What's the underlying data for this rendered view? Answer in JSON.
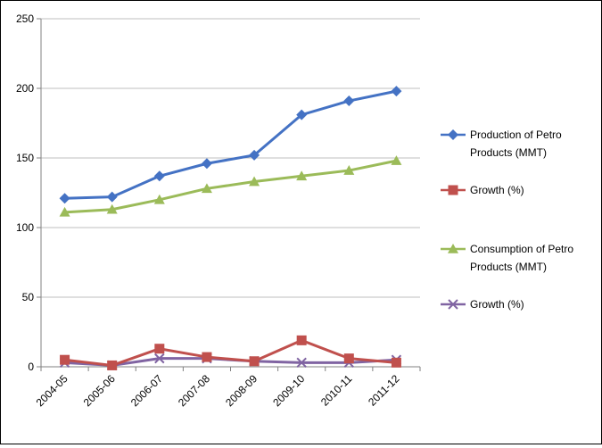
{
  "chart_data": {
    "type": "line",
    "title": "",
    "xlabel": "",
    "ylabel": "",
    "ylim": [
      0,
      250
    ],
    "yticks": [
      0,
      50,
      100,
      150,
      200,
      250
    ],
    "grid": "horizontal",
    "legend_position": "right",
    "categories": [
      "2004-05",
      "2005-06",
      "2006-07",
      "2007-08",
      "2008-09",
      "2009-10",
      "2010-11",
      "2011-12"
    ],
    "series": [
      {
        "name": "Production of Petro Products (MMT)",
        "legend_lines": [
          "Production of Petro",
          "Products (MMT)"
        ],
        "color": "#4472c4",
        "marker": "diamond",
        "values": [
          121,
          122,
          137,
          146,
          152,
          181,
          191,
          198
        ]
      },
      {
        "name": "Growth (%)",
        "legend_lines": [
          "Growth (%)"
        ],
        "color": "#c0504d",
        "marker": "square",
        "values": [
          5,
          1,
          13,
          7,
          4,
          19,
          6,
          3
        ]
      },
      {
        "name": "Consumption of Petro Products (MMT)",
        "legend_lines": [
          "Consumption of Petro",
          "Products (MMT)"
        ],
        "color": "#9bbb59",
        "marker": "triangle",
        "values": [
          111,
          113,
          120,
          128,
          133,
          137,
          141,
          148
        ]
      },
      {
        "name": "Growth (%)",
        "legend_lines": [
          "Growth (%)"
        ],
        "color": "#8064a2",
        "marker": "x",
        "values": [
          3,
          1,
          6,
          6,
          4,
          3,
          3,
          5
        ]
      }
    ]
  }
}
